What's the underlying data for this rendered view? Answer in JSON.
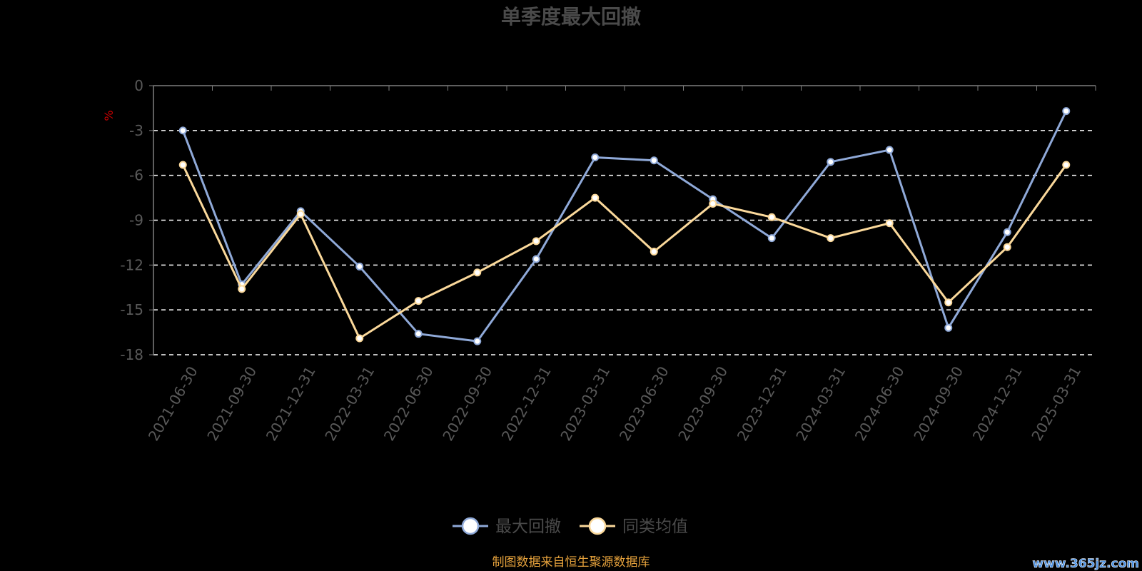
{
  "chart_data": {
    "type": "line",
    "title": "单季度最大回撤",
    "ylabel": "%",
    "xlabel": "",
    "ylim": [
      -18,
      0
    ],
    "yticks": [
      0,
      -3,
      -6,
      -9,
      -12,
      -15,
      -18
    ],
    "categories": [
      "2021-06-30",
      "2021-09-30",
      "2021-12-31",
      "2022-03-31",
      "2022-06-30",
      "2022-09-30",
      "2022-12-31",
      "2023-03-31",
      "2023-06-30",
      "2023-09-30",
      "2023-12-31",
      "2024-03-31",
      "2024-06-30",
      "2024-09-30",
      "2024-12-31",
      "2025-03-31"
    ],
    "series": [
      {
        "name": "最大回撤",
        "color": "#8fa9d8",
        "values": [
          -3.0,
          -13.3,
          -8.4,
          -12.1,
          -16.6,
          -17.1,
          -11.6,
          -4.8,
          -5.0,
          -7.6,
          -10.2,
          -5.1,
          -4.3,
          -16.2,
          -9.8,
          -1.7
        ]
      },
      {
        "name": "同类均值",
        "color": "#fbd99b",
        "values": [
          -5.3,
          -13.6,
          -8.6,
          -16.9,
          -14.4,
          -12.5,
          -10.4,
          -7.5,
          -11.1,
          -7.9,
          -8.8,
          -10.2,
          -9.2,
          -14.5,
          -10.8,
          -5.3
        ]
      }
    ],
    "grid": true,
    "legend_position": "bottom-center"
  },
  "footer": {
    "source_note": "制图数据来自恒生聚源数据库",
    "watermark": "www.365jz.com"
  },
  "colors": {
    "background": "#000000",
    "axis": "#7f7f7f",
    "grid": "#ffffff",
    "title": "#4a4a4a",
    "tick_label": "#595959",
    "ylabel": "#cc0000",
    "source_note": "#e6a23c",
    "watermark": "#4a90e2"
  }
}
